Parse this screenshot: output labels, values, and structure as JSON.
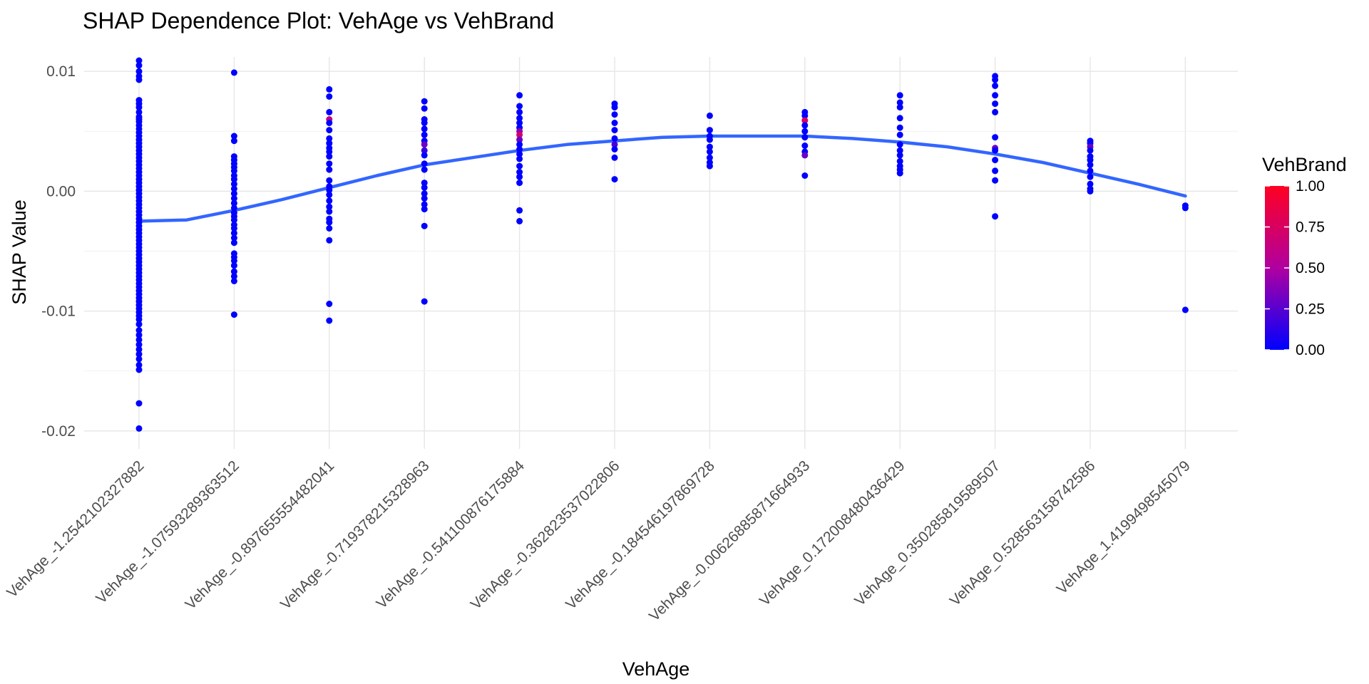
{
  "chart_data": {
    "type": "scatter",
    "title": "SHAP Dependence Plot: VehAge vs VehBrand",
    "xlabel": "VehAge",
    "ylabel": "SHAP Value",
    "categories": [
      "VehAge_-1.2542102327882",
      "VehAge_-1.07593289363512",
      "VehAge_-0.897655554482041",
      "VehAge_-0.719378215328963",
      "VehAge_-0.541100876175884",
      "VehAge_-0.362823537022806",
      "VehAge_-0.184546197869728",
      "VehAge_-0.00626885871664933",
      "VehAge_0.172008480436429",
      "VehAge_0.350285819589507",
      "VehAge_0.528563158742586",
      "VehAge_1.4199498545079"
    ],
    "ylim": [
      -0.0215,
      0.0112
    ],
    "yticks": [
      {
        "value": 0.01,
        "label": "0.01"
      },
      {
        "value": 0.0,
        "label": "0.00"
      },
      {
        "value": -0.01,
        "label": "-0.01"
      },
      {
        "value": -0.02,
        "label": "-0.02"
      }
    ],
    "grid": true,
    "points": [
      [
        [
          0.0109,
          0
        ],
        [
          0.0105,
          0
        ],
        [
          0.01,
          0
        ],
        [
          0.0096,
          0
        ],
        [
          0.0093,
          0
        ],
        [
          0.0076,
          0
        ],
        [
          0.0073,
          0
        ],
        [
          0.007,
          0
        ],
        [
          0.0066,
          0
        ],
        [
          0.0062,
          0
        ],
        [
          0.006,
          0
        ],
        [
          0.0058,
          0
        ],
        [
          0.0055,
          0
        ],
        [
          0.0052,
          0
        ],
        [
          0.0049,
          0
        ],
        [
          0.0046,
          0
        ],
        [
          0.0043,
          0
        ],
        [
          0.004,
          0
        ],
        [
          0.0037,
          0
        ],
        [
          0.0034,
          0
        ],
        [
          0.0031,
          0
        ],
        [
          0.0028,
          0
        ],
        [
          0.0025,
          0
        ],
        [
          0.0022,
          0
        ],
        [
          0.0019,
          0
        ],
        [
          0.0016,
          0
        ],
        [
          0.0013,
          0
        ],
        [
          0.001,
          0
        ],
        [
          0.0007,
          0
        ],
        [
          0.0004,
          0
        ],
        [
          0.0001,
          0
        ],
        [
          -0.0002,
          0
        ],
        [
          -0.0005,
          0
        ],
        [
          -0.0008,
          0
        ],
        [
          -0.0011,
          0
        ],
        [
          -0.0014,
          0
        ],
        [
          -0.0017,
          0
        ],
        [
          -0.002,
          0
        ],
        [
          -0.0023,
          0
        ],
        [
          -0.0026,
          0
        ],
        [
          -0.0029,
          0
        ],
        [
          -0.0032,
          0
        ],
        [
          -0.0035,
          0
        ],
        [
          -0.0038,
          0
        ],
        [
          -0.0041,
          0
        ],
        [
          -0.0044,
          0
        ],
        [
          -0.0047,
          0
        ],
        [
          -0.005,
          0
        ],
        [
          -0.0053,
          0
        ],
        [
          -0.0056,
          0
        ],
        [
          -0.0059,
          0
        ],
        [
          -0.0062,
          0
        ],
        [
          -0.0065,
          0
        ],
        [
          -0.0068,
          0
        ],
        [
          -0.0071,
          0
        ],
        [
          -0.0074,
          0
        ],
        [
          -0.0077,
          0
        ],
        [
          -0.008,
          0
        ],
        [
          -0.0083,
          0
        ],
        [
          -0.0086,
          0
        ],
        [
          -0.0089,
          0
        ],
        [
          -0.0092,
          0
        ],
        [
          -0.0095,
          0
        ],
        [
          -0.0098,
          0
        ],
        [
          -0.0101,
          0
        ],
        [
          -0.0104,
          0
        ],
        [
          -0.0107,
          0
        ],
        [
          -0.0111,
          0
        ],
        [
          -0.0116,
          0
        ],
        [
          -0.012,
          0
        ],
        [
          -0.0124,
          0
        ],
        [
          -0.0128,
          0
        ],
        [
          -0.0132,
          0
        ],
        [
          -0.0136,
          0
        ],
        [
          -0.014,
          0
        ],
        [
          -0.0145,
          0
        ],
        [
          -0.0149,
          0
        ],
        [
          -0.0177,
          0
        ],
        [
          -0.0198,
          0
        ]
      ],
      [
        [
          0.0099,
          0
        ],
        [
          0.0046,
          0
        ],
        [
          0.0042,
          0
        ],
        [
          0.0029,
          0
        ],
        [
          0.0026,
          0
        ],
        [
          0.0023,
          0
        ],
        [
          0.002,
          0
        ],
        [
          0.0017,
          0
        ],
        [
          0.0013,
          0
        ],
        [
          0.001,
          0
        ],
        [
          0.0006,
          0
        ],
        [
          0.0002,
          0
        ],
        [
          -0.0002,
          0
        ],
        [
          -0.0006,
          0
        ],
        [
          -0.001,
          0
        ],
        [
          -0.0014,
          0
        ],
        [
          -0.0018,
          0
        ],
        [
          -0.0021,
          0
        ],
        [
          -0.0024,
          0
        ],
        [
          -0.0028,
          0
        ],
        [
          -0.0031,
          0
        ],
        [
          -0.0035,
          0
        ],
        [
          -0.0039,
          0
        ],
        [
          -0.0043,
          0
        ],
        [
          -0.0052,
          0
        ],
        [
          -0.0055,
          0
        ],
        [
          -0.0058,
          0
        ],
        [
          -0.0062,
          0
        ],
        [
          -0.0067,
          0
        ],
        [
          -0.0071,
          0
        ],
        [
          -0.0075,
          0
        ],
        [
          -0.0103,
          0
        ]
      ],
      [
        [
          0.0085,
          0
        ],
        [
          0.0079,
          0
        ],
        [
          0.0066,
          0
        ],
        [
          0.006,
          0.6
        ],
        [
          0.0057,
          0
        ],
        [
          0.0051,
          0
        ],
        [
          0.0044,
          0
        ],
        [
          0.004,
          0
        ],
        [
          0.0036,
          0
        ],
        [
          0.0033,
          0
        ],
        [
          0.0029,
          0
        ],
        [
          0.0023,
          0
        ],
        [
          0.0018,
          0
        ],
        [
          0.0009,
          0
        ],
        [
          0.0004,
          0
        ],
        [
          0.0001,
          0
        ],
        [
          -0.0003,
          0
        ],
        [
          -0.0008,
          0
        ],
        [
          -0.0013,
          0
        ],
        [
          -0.0017,
          0
        ],
        [
          -0.0023,
          0
        ],
        [
          -0.0026,
          0
        ],
        [
          -0.0031,
          0
        ],
        [
          -0.0041,
          0
        ],
        [
          -0.0094,
          0
        ],
        [
          -0.0108,
          0
        ]
      ],
      [
        [
          0.0075,
          0
        ],
        [
          0.0069,
          0
        ],
        [
          0.006,
          0
        ],
        [
          0.0057,
          0
        ],
        [
          0.0052,
          0
        ],
        [
          0.0047,
          0
        ],
        [
          0.0042,
          0
        ],
        [
          0.0039,
          0.3
        ],
        [
          0.0034,
          0.15
        ],
        [
          0.003,
          0
        ],
        [
          0.0023,
          0
        ],
        [
          0.0018,
          0
        ],
        [
          0.0007,
          0
        ],
        [
          0.0003,
          0
        ],
        [
          -0.0002,
          0
        ],
        [
          -0.0006,
          0
        ],
        [
          -0.0011,
          0
        ],
        [
          -0.0015,
          0
        ],
        [
          -0.0029,
          0
        ],
        [
          -0.0092,
          0
        ]
      ],
      [
        [
          0.008,
          0
        ],
        [
          0.0071,
          0
        ],
        [
          0.0066,
          0
        ],
        [
          0.0061,
          0
        ],
        [
          0.0057,
          0
        ],
        [
          0.0053,
          0
        ],
        [
          0.005,
          0.4
        ],
        [
          0.0047,
          0.7
        ],
        [
          0.0043,
          0.3
        ],
        [
          0.0039,
          0
        ],
        [
          0.0035,
          0
        ],
        [
          0.0031,
          0
        ],
        [
          0.0027,
          0
        ],
        [
          0.0021,
          0
        ],
        [
          0.0016,
          0
        ],
        [
          0.0012,
          0
        ],
        [
          0.0007,
          0
        ],
        [
          -0.0016,
          0
        ],
        [
          -0.0025,
          0
        ]
      ],
      [
        [
          0.0073,
          0
        ],
        [
          0.007,
          0
        ],
        [
          0.0064,
          0
        ],
        [
          0.0057,
          0
        ],
        [
          0.0051,
          0
        ],
        [
          0.0044,
          0
        ],
        [
          0.0039,
          0.2
        ],
        [
          0.0035,
          0
        ],
        [
          0.0028,
          0
        ],
        [
          0.001,
          0
        ]
      ],
      [
        [
          0.0063,
          0
        ],
        [
          0.0051,
          0
        ],
        [
          0.0046,
          0
        ],
        [
          0.0043,
          0
        ],
        [
          0.0037,
          0
        ],
        [
          0.0033,
          0
        ],
        [
          0.0028,
          0
        ],
        [
          0.0024,
          0
        ],
        [
          0.0021,
          0
        ]
      ],
      [
        [
          0.0066,
          0
        ],
        [
          0.0063,
          0
        ],
        [
          0.0059,
          0.75
        ],
        [
          0.0055,
          0
        ],
        [
          0.005,
          0
        ],
        [
          0.0045,
          0
        ],
        [
          0.0038,
          0
        ],
        [
          0.0033,
          0
        ],
        [
          0.003,
          0.3
        ],
        [
          0.0013,
          0
        ]
      ],
      [
        [
          0.008,
          0
        ],
        [
          0.0074,
          0
        ],
        [
          0.007,
          0
        ],
        [
          0.0061,
          0
        ],
        [
          0.0053,
          0
        ],
        [
          0.0047,
          0
        ],
        [
          0.0039,
          0
        ],
        [
          0.0034,
          0
        ],
        [
          0.003,
          0
        ],
        [
          0.0025,
          0
        ],
        [
          0.0021,
          0
        ],
        [
          0.0018,
          0
        ],
        [
          0.0015,
          0
        ]
      ],
      [
        [
          0.0096,
          0
        ],
        [
          0.0093,
          0
        ],
        [
          0.0088,
          0
        ],
        [
          0.008,
          0
        ],
        [
          0.0073,
          0
        ],
        [
          0.0066,
          0
        ],
        [
          0.0045,
          0
        ],
        [
          0.0036,
          0.3
        ],
        [
          0.0034,
          0
        ],
        [
          0.0026,
          0
        ],
        [
          0.0017,
          0
        ],
        [
          0.0009,
          0
        ],
        [
          -0.0021,
          0
        ]
      ],
      [
        [
          0.0042,
          0
        ],
        [
          0.004,
          0
        ],
        [
          0.0037,
          0.3
        ],
        [
          0.0034,
          0
        ],
        [
          0.0029,
          0
        ],
        [
          0.0026,
          0
        ],
        [
          0.0022,
          0
        ],
        [
          0.0017,
          0
        ],
        [
          0.0012,
          0
        ],
        [
          0.0006,
          0
        ],
        [
          0.0002,
          0
        ],
        [
          0.0,
          0
        ]
      ],
      [
        [
          -0.0012,
          0
        ],
        [
          -0.0014,
          0
        ],
        [
          -0.0099,
          0
        ]
      ]
    ],
    "smooth": {
      "label": "",
      "color": "#3366ff",
      "x_from": 0,
      "x_to": 11,
      "points": [
        [
          0,
          -0.0025
        ],
        [
          0.5,
          -0.0024
        ],
        [
          1,
          -0.0016
        ],
        [
          1.5,
          -0.0007
        ],
        [
          2,
          0.0003
        ],
        [
          2.5,
          0.0013
        ],
        [
          3,
          0.0022
        ],
        [
          3.5,
          0.0028
        ],
        [
          4,
          0.0034
        ],
        [
          4.5,
          0.0039
        ],
        [
          5,
          0.0042
        ],
        [
          5.5,
          0.0045
        ],
        [
          6,
          0.0046
        ],
        [
          6.5,
          0.0046
        ],
        [
          7,
          0.0046
        ],
        [
          7.5,
          0.0044
        ],
        [
          8,
          0.0041
        ],
        [
          8.5,
          0.0037
        ],
        [
          9,
          0.0031
        ],
        [
          9.5,
          0.0024
        ],
        [
          10,
          0.0015
        ],
        [
          10.5,
          0.0006
        ],
        [
          11,
          -0.0004
        ]
      ]
    },
    "legend": {
      "title": "VehBrand",
      "position": "right",
      "min": 0,
      "max": 1,
      "low_color": "#0000ff",
      "high_color": "#ff0000",
      "ticks": [
        {
          "value": 1.0,
          "label": "1.00"
        },
        {
          "value": 0.75,
          "label": "0.75"
        },
        {
          "value": 0.5,
          "label": "0.50"
        },
        {
          "value": 0.25,
          "label": "0.25"
        },
        {
          "value": 0.0,
          "label": "0.00"
        }
      ]
    }
  }
}
